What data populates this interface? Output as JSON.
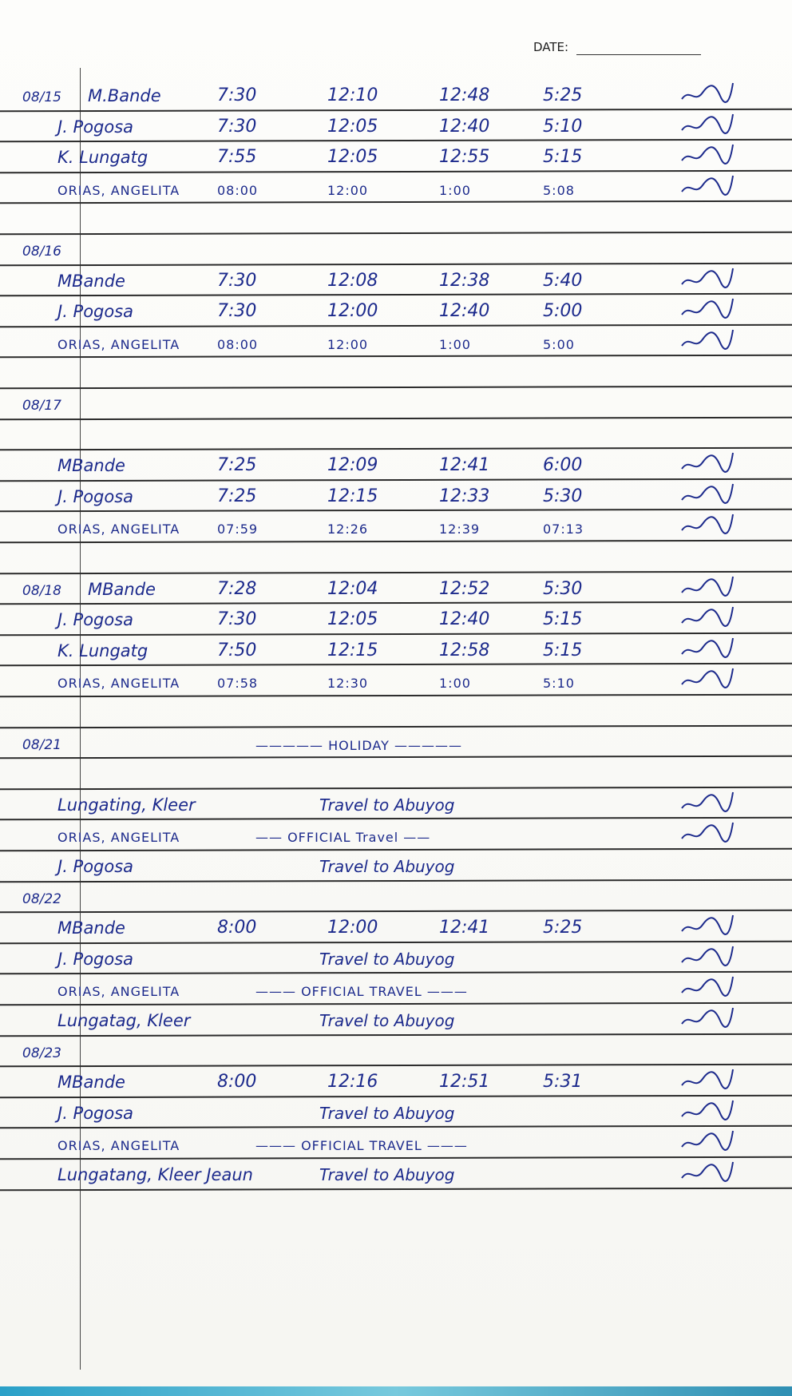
{
  "header": {
    "date_label": "DATE:"
  },
  "rows": [
    {
      "date": "08/15",
      "name": "M.Bande",
      "times": [
        "7:30",
        "12:10",
        "12:48",
        "5:25"
      ],
      "signed": true
    },
    {
      "date": "",
      "name": "J. Pogosa",
      "times": [
        "7:30",
        "12:05",
        "12:40",
        "5:10"
      ],
      "signed": true
    },
    {
      "date": "",
      "name": "K. Lungatg",
      "times": [
        "7:55",
        "12:05",
        "12:55",
        "5:15"
      ],
      "signed": true
    },
    {
      "date": "",
      "name": "ORIAS, ANGELITA",
      "times": [
        "08:00",
        "12:00",
        "1:00",
        "5:08"
      ],
      "signed": true,
      "caps": true
    },
    {
      "date": "",
      "name": ""
    },
    {
      "date": "08/16",
      "name": ""
    },
    {
      "date": "",
      "name": "MBande",
      "times": [
        "7:30",
        "12:08",
        "12:38",
        "5:40"
      ],
      "signed": true
    },
    {
      "date": "",
      "name": "J. Pogosa",
      "times": [
        "7:30",
        "12:00",
        "12:40",
        "5:00"
      ],
      "signed": true
    },
    {
      "date": "",
      "name": "ORIAS, ANGELITA",
      "times": [
        "08:00",
        "12:00",
        "1:00",
        "5:00"
      ],
      "signed": true,
      "caps": true
    },
    {
      "date": "",
      "name": ""
    },
    {
      "date": "08/17",
      "name": ""
    },
    {
      "date": "",
      "name": ""
    },
    {
      "date": "",
      "name": "MBande",
      "times": [
        "7:25",
        "12:09",
        "12:41",
        "6:00"
      ],
      "signed": true
    },
    {
      "date": "",
      "name": "J. Pogosa",
      "times": [
        "7:25",
        "12:15",
        "12:33",
        "5:30"
      ],
      "signed": true
    },
    {
      "date": "",
      "name": "ORIAS, ANGELITA",
      "times": [
        "07:59",
        "12:26",
        "12:39",
        "07:13"
      ],
      "signed": true,
      "caps": true
    },
    {
      "date": "",
      "name": ""
    },
    {
      "date": "08/18",
      "name": "MBande",
      "times": [
        "7:28",
        "12:04",
        "12:52",
        "5:30"
      ],
      "signed": true
    },
    {
      "date": "",
      "name": "J. Pogosa",
      "times": [
        "7:30",
        "12:05",
        "12:40",
        "5:15"
      ],
      "signed": true
    },
    {
      "date": "",
      "name": "K. Lungatg",
      "times": [
        "7:50",
        "12:15",
        "12:58",
        "5:15"
      ],
      "signed": true
    },
    {
      "date": "",
      "name": "ORIAS, ANGELITA",
      "times": [
        "07:58",
        "12:30",
        "1:00",
        "5:10"
      ],
      "signed": true,
      "caps": true
    },
    {
      "date": "",
      "name": ""
    },
    {
      "date": "08/21",
      "name": "",
      "note": "—————  HOLIDAY  —————",
      "caps_note": true
    },
    {
      "date": "",
      "name": ""
    },
    {
      "date": "",
      "name": "Lungating, Kleer",
      "note": "Travel to Abuyog",
      "signed": true
    },
    {
      "date": "",
      "name": "ORIAS, ANGELITA",
      "note": "—— OFFICIAL Travel ——",
      "signed": true,
      "caps": true,
      "caps_note": true
    },
    {
      "date": "",
      "name": "J. Pogosa",
      "note": "Travel to Abuyog"
    },
    {
      "date": "08/22",
      "name": ""
    },
    {
      "date": "",
      "name": "MBande",
      "times": [
        "8:00",
        "12:00",
        "12:41",
        "5:25"
      ],
      "signed": true
    },
    {
      "date": "",
      "name": "J. Pogosa",
      "note": "Travel to Abuyog",
      "signed": true
    },
    {
      "date": "",
      "name": "ORIAS, ANGELITA",
      "note": "——— OFFICIAL TRAVEL ———",
      "signed": true,
      "caps": true,
      "caps_note": true
    },
    {
      "date": "",
      "name": "Lungatag, Kleer",
      "note": "Travel to Abuyog",
      "signed": true
    },
    {
      "date": "08/23",
      "name": ""
    },
    {
      "date": "",
      "name": "MBande",
      "times": [
        "8:00",
        "12:16",
        "12:51",
        "5:31"
      ],
      "signed": true
    },
    {
      "date": "",
      "name": "J. Pogosa",
      "note": "Travel to Abuyog",
      "signed": true
    },
    {
      "date": "",
      "name": "ORIAS, ANGELITA",
      "note": "——— OFFICIAL TRAVEL ———",
      "signed": true,
      "caps": true,
      "caps_note": true
    },
    {
      "date": "",
      "name": "Lungatang, Kleer Jeaun",
      "note": "Travel to Abuyog",
      "signed": true
    }
  ],
  "colors": {
    "ink": "#1c2a8c",
    "rule": "#2b2b2b"
  }
}
